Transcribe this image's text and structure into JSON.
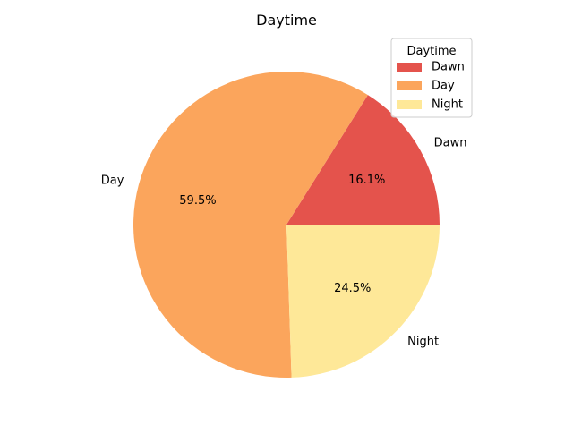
{
  "chart_data": {
    "type": "pie",
    "title": "Daytime",
    "categories": [
      "Dawn",
      "Day",
      "Night"
    ],
    "values": [
      16.1,
      59.5,
      24.5
    ],
    "percent_labels": [
      "16.1%",
      "59.5%",
      "24.5%"
    ],
    "colors": [
      "#e4534c",
      "#fba55c",
      "#fee898"
    ],
    "start_angle_deg": 0,
    "direction": "counterclockwise",
    "legend": {
      "title": "Daytime",
      "entries": [
        "Dawn",
        "Day",
        "Night"
      ],
      "placement": "top-right"
    }
  }
}
